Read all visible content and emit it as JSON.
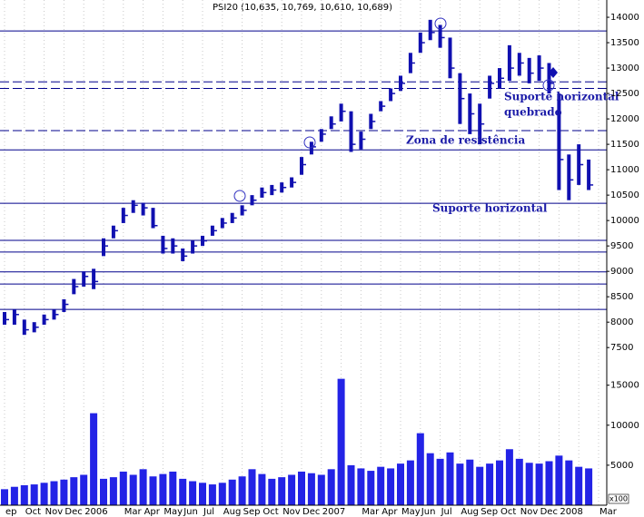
{
  "chart_data": {
    "type": "stock",
    "title": "PSI20 (10,635, 10,769, 10,610, 10,689)",
    "categories": [
      "ep",
      null,
      "Oct",
      null,
      "Nov",
      null,
      "Dec",
      null,
      "2006",
      null,
      null,
      null,
      "Mar",
      null,
      "Apr",
      null,
      "May",
      null,
      "Jun",
      null,
      "Jul",
      null,
      "Aug",
      null,
      "Sep",
      null,
      "Oct",
      null,
      "Nov",
      null,
      "Dec",
      null,
      "2007",
      null,
      null,
      null,
      "Mar",
      null,
      "Apr",
      null,
      "May",
      null,
      "Jun",
      null,
      "Jul",
      null,
      "Aug",
      null,
      "Sep",
      null,
      "Oct",
      null,
      "Nov",
      null,
      "Dec",
      null,
      "2008",
      null,
      null,
      null,
      "Mar"
    ],
    "close": [
      8050,
      8150,
      7850,
      7900,
      8050,
      8150,
      8350,
      8700,
      8900,
      8800,
      9500,
      9800,
      10100,
      10300,
      10250,
      9900,
      9450,
      9500,
      9300,
      9500,
      9600,
      9800,
      9950,
      10050,
      10200,
      10400,
      10550,
      10600,
      10650,
      10750,
      11100,
      11450,
      11700,
      11900,
      12150,
      11500,
      11600,
      11950,
      12250,
      12500,
      12700,
      13100,
      13500,
      13700,
      13600,
      13000,
      12400,
      12100,
      11900,
      12700,
      12800,
      13000,
      13100,
      12900,
      13000,
      12700,
      11200,
      10800,
      11100,
      10700,
      null
    ],
    "high": [
      8200,
      8250,
      8050,
      8000,
      8150,
      8250,
      8450,
      8850,
      9000,
      9050,
      9650,
      9900,
      10250,
      10400,
      10350,
      10250,
      9700,
      9650,
      9450,
      9600,
      9700,
      9900,
      10050,
      10150,
      10300,
      10500,
      10650,
      10700,
      10750,
      10850,
      11250,
      11550,
      11800,
      12050,
      12300,
      12150,
      11750,
      12100,
      12350,
      12600,
      12850,
      13300,
      13700,
      13950,
      13850,
      13600,
      12900,
      12500,
      12300,
      12850,
      13000,
      13450,
      13300,
      13200,
      13250,
      13100,
      12500,
      11300,
      11500,
      11200,
      null
    ],
    "low": [
      7950,
      7950,
      7750,
      7800,
      7950,
      8050,
      8200,
      8550,
      8700,
      8650,
      9300,
      9650,
      9950,
      10150,
      10100,
      9850,
      9350,
      9350,
      9200,
      9350,
      9500,
      9700,
      9850,
      9950,
      10100,
      10300,
      10450,
      10500,
      10550,
      10650,
      10900,
      11300,
      11550,
      11800,
      11950,
      11350,
      11400,
      11800,
      12150,
      12350,
      12550,
      12900,
      13300,
      13550,
      13400,
      12800,
      11900,
      11700,
      11500,
      12400,
      12600,
      12750,
      12850,
      12700,
      12750,
      12500,
      10600,
      10400,
      10700,
      10600,
      null
    ],
    "volume": [
      2000,
      2300,
      2500,
      2600,
      2800,
      3000,
      3200,
      3500,
      3800,
      11500,
      3300,
      3500,
      4200,
      3800,
      4500,
      3600,
      3900,
      4200,
      3300,
      3000,
      2800,
      2600,
      2800,
      3200,
      3600,
      4500,
      3900,
      3300,
      3500,
      3800,
      4200,
      4000,
      3800,
      4500,
      15800,
      5000,
      4600,
      4300,
      4800,
      4600,
      5200,
      5600,
      9000,
      6500,
      5800,
      6600,
      5200,
      5700,
      4800,
      5200,
      5600,
      7000,
      5800,
      5300,
      5200,
      5500,
      6200,
      5600,
      4800,
      4600,
      null
    ],
    "color": "#1010b0",
    "volume_color": "#2323e6",
    "ylim": [
      7200,
      14340
    ],
    "yticks": [
      7500,
      8000,
      8500,
      9000,
      9500,
      10000,
      10500,
      11000,
      11500,
      12000,
      12500,
      13000,
      13500,
      14000
    ],
    "y2lim": [
      0,
      17800
    ],
    "y2ticks": [
      5000,
      10000,
      15000
    ],
    "volume_unit": "x100",
    "solid_lines": [
      13730,
      11390,
      10340,
      9610,
      9380,
      8990,
      8750,
      8250
    ],
    "dashed_lines": [
      12730,
      12600,
      11770
    ],
    "annotations": [
      "Suporte horizontal",
      "quebrado",
      "Zona de resistência",
      "Suporte horizontal"
    ],
    "grid": true
  }
}
